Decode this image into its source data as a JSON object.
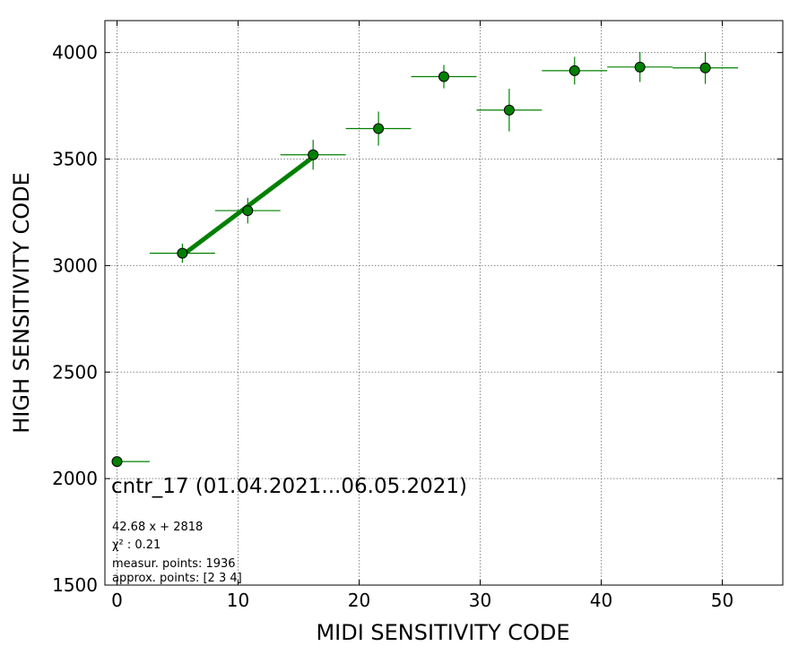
{
  "chart_data": {
    "type": "scatter",
    "xlabel": "MIDI SENSITIVITY CODE",
    "ylabel": "HIGH SENSITIVITY CODE",
    "xlim": [
      -1,
      55
    ],
    "ylim": [
      1500,
      4150
    ],
    "xticks": [
      0,
      10,
      20,
      30,
      40,
      50
    ],
    "yticks": [
      1500,
      2000,
      2500,
      3000,
      3500,
      4000
    ],
    "grid": true,
    "colors": {
      "points": "#008000",
      "errors": "#008000",
      "fit": "#008000"
    },
    "points": [
      {
        "x": 0.0,
        "y": 2080,
        "xerr": [
          0.0,
          2.7
        ],
        "yerr": 0
      },
      {
        "x": 5.4,
        "y": 3058,
        "xerr": [
          2.7,
          2.7
        ],
        "yerr": 45
      },
      {
        "x": 10.8,
        "y": 3258,
        "xerr": [
          2.7,
          2.7
        ],
        "yerr": 60
      },
      {
        "x": 16.2,
        "y": 3520,
        "xerr": [
          2.7,
          2.7
        ],
        "yerr": 70
      },
      {
        "x": 21.6,
        "y": 3643,
        "xerr": [
          2.7,
          2.7
        ],
        "yerr": 80
      },
      {
        "x": 27.0,
        "y": 3887,
        "xerr": [
          2.7,
          2.7
        ],
        "yerr": 55
      },
      {
        "x": 32.4,
        "y": 3730,
        "xerr": [
          2.7,
          2.7
        ],
        "yerr": 100
      },
      {
        "x": 37.8,
        "y": 3915,
        "xerr": [
          2.7,
          2.7
        ],
        "yerr": 65
      },
      {
        "x": 43.2,
        "y": 3932,
        "xerr": [
          2.7,
          2.7
        ],
        "yerr": 70
      },
      {
        "x": 48.6,
        "y": 3928,
        "xerr": [
          2.7,
          2.7
        ],
        "yerr": 75
      }
    ],
    "fit": {
      "slope": 42.68,
      "intercept": 2818,
      "x_range": [
        5.4,
        16.2
      ]
    },
    "annotations": {
      "title": "cntr_17 (01.04.2021...06.05.2021)",
      "fit_equation": "42.68 x + 2818",
      "chi2": "χ² : 0.21",
      "measur_points": "measur. points: 1936",
      "approx_points": "approx. points: [2 3 4]"
    }
  }
}
